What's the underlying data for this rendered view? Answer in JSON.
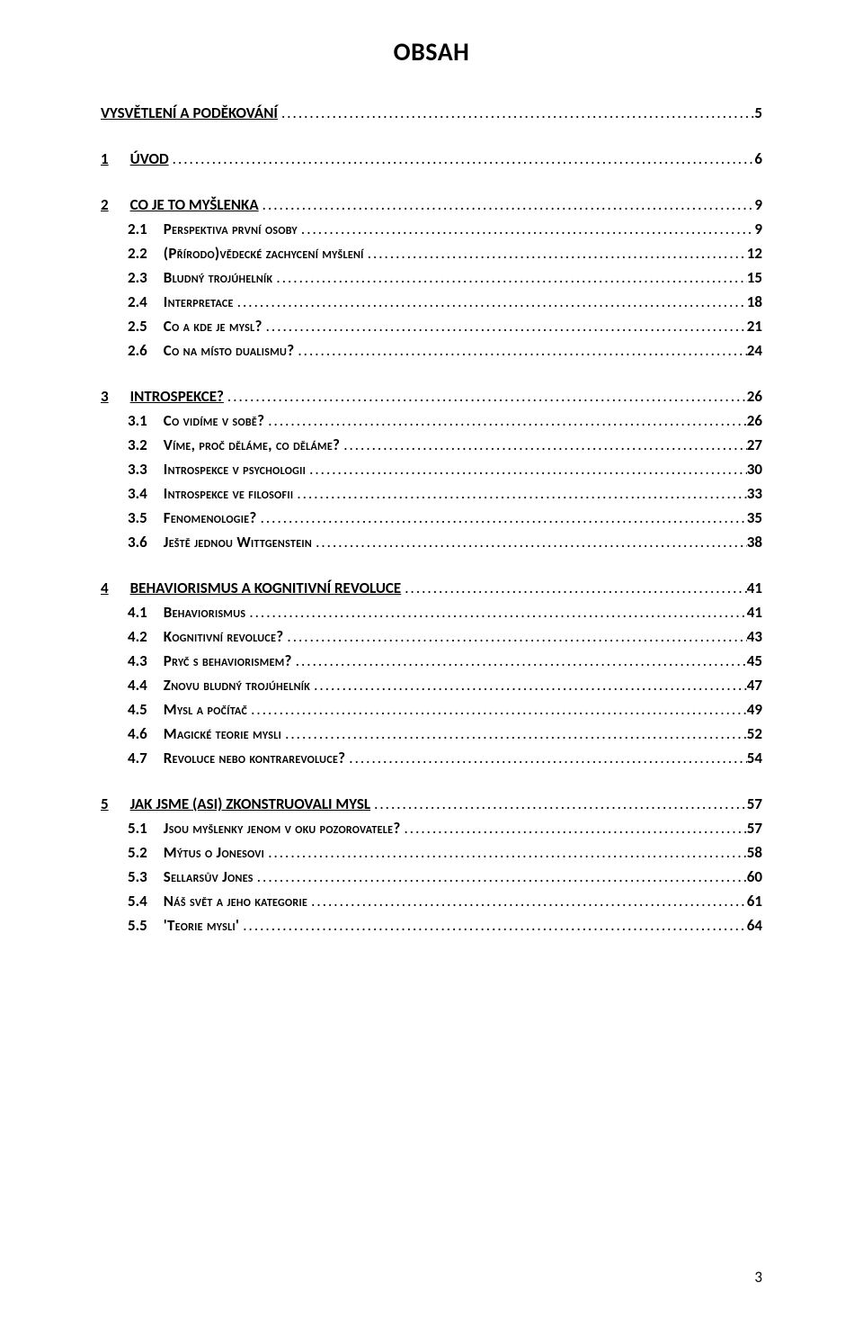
{
  "title": "OBSAH",
  "page_number": "3",
  "toc": [
    {
      "kind": "first",
      "num": "",
      "label": "VYSVĚTLENÍ A PODĚKOVÁNÍ",
      "page": "5"
    },
    {
      "kind": "chapter",
      "num": "1",
      "label": "ÚVOD",
      "page": "6"
    },
    {
      "kind": "chapter",
      "num": "2",
      "label": "CO JE TO MYŠLENKA",
      "page": "9"
    },
    {
      "kind": "sub",
      "num": "2.1",
      "label": "Perspektiva první osoby",
      "page": "9"
    },
    {
      "kind": "sub",
      "num": "2.2",
      "label": "(Přírodo)vědecké zachycení myšlení",
      "page": "12"
    },
    {
      "kind": "sub",
      "num": "2.3",
      "label": "Bludný trojúhelník",
      "page": "15"
    },
    {
      "kind": "sub",
      "num": "2.4",
      "label": "Interpretace",
      "page": "18"
    },
    {
      "kind": "sub",
      "num": "2.5",
      "label": "Co a kde je mysl?",
      "page": "21"
    },
    {
      "kind": "sub",
      "num": "2.6",
      "label": "Co na místo dualismu?",
      "page": "24"
    },
    {
      "kind": "chapter",
      "num": "3",
      "label": "INTROSPEKCE?",
      "page": "26"
    },
    {
      "kind": "sub",
      "num": "3.1",
      "label": "Co vidíme v sobě?",
      "page": "26"
    },
    {
      "kind": "sub",
      "num": "3.2",
      "label": "Víme, proč děláme, co děláme?",
      "page": "27"
    },
    {
      "kind": "sub",
      "num": "3.3",
      "label": "Introspekce v psychologii",
      "page": "30"
    },
    {
      "kind": "sub",
      "num": "3.4",
      "label": "Introspekce ve filosofii",
      "page": "33"
    },
    {
      "kind": "sub",
      "num": "3.5",
      "label": "Fenomenologie?",
      "page": "35"
    },
    {
      "kind": "sub",
      "num": "3.6",
      "label": "Ještě jednou Wittgenstein",
      "page": "38"
    },
    {
      "kind": "chapter",
      "num": "4",
      "label": "BEHAVIORISMUS A KOGNITIVNÍ REVOLUCE",
      "page": "41"
    },
    {
      "kind": "sub",
      "num": "4.1",
      "label": "Behaviorismus",
      "page": "41"
    },
    {
      "kind": "sub",
      "num": "4.2",
      "label": "Kognitivní revoluce?",
      "page": "43"
    },
    {
      "kind": "sub",
      "num": "4.3",
      "label": "Pryč s behaviorismem?",
      "page": "45"
    },
    {
      "kind": "sub",
      "num": "4.4",
      "label": "Znovu bludný trojúhelník",
      "page": "47"
    },
    {
      "kind": "sub",
      "num": "4.5",
      "label": "Mysl a počítač",
      "page": "49"
    },
    {
      "kind": "sub",
      "num": "4.6",
      "label": "Magické teorie mysli",
      "page": "52"
    },
    {
      "kind": "sub",
      "num": "4.7",
      "label": "Revoluce nebo kontrarevoluce?",
      "page": "54"
    },
    {
      "kind": "chapter",
      "num": "5",
      "label": "JAK JSME (ASI) ZKONSTRUOVALI MYSL",
      "page": "57"
    },
    {
      "kind": "sub",
      "num": "5.1",
      "label": "Jsou myšlenky jenom v oku pozorovatele?",
      "page": "57"
    },
    {
      "kind": "sub",
      "num": "5.2",
      "label": "Mýtus o Jonesovi",
      "page": "58"
    },
    {
      "kind": "sub",
      "num": "5.3",
      "label": "Sellarsův Jones",
      "page": "60"
    },
    {
      "kind": "sub",
      "num": "5.4",
      "label": "Náš svět a jeho kategorie",
      "page": "61"
    },
    {
      "kind": "sub",
      "num": "5.5",
      "label": "'Teorie mysli'",
      "page": "64"
    }
  ]
}
